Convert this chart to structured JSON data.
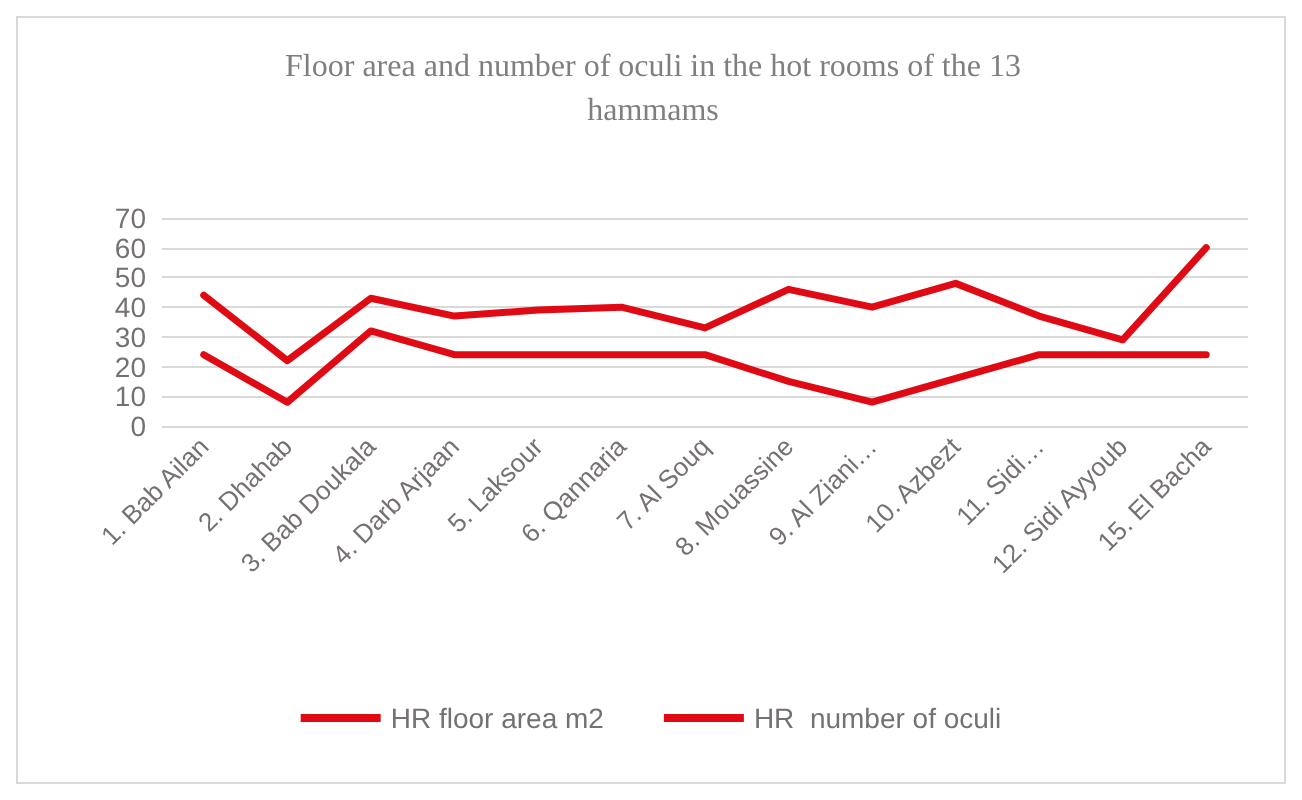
{
  "chart_data": {
    "type": "line",
    "title": "Floor area and number of oculi in the hot rooms of the 13 hammams",
    "categories": [
      "1. Bab Ailan",
      "2. Dhahab",
      "3. Bab Doukala",
      "4. Darb Arjaan",
      "5. Laksour",
      "6. Qannaria",
      "7. Al Souq",
      "8. Mouassine",
      "9. Al Ziani…",
      "10. Azbezt",
      "11. Sidi…",
      "12. Sidi Ayyoub",
      "15. El Bacha"
    ],
    "series": [
      {
        "name": "HR floor area m2",
        "color": "#e00a14",
        "values": [
          44,
          22,
          43,
          37,
          39,
          40,
          33,
          46,
          40,
          48,
          37,
          29,
          60
        ]
      },
      {
        "name": "HR  number of oculi",
        "color": "#e00a14",
        "values": [
          24,
          8,
          32,
          24,
          24,
          24,
          24,
          15,
          8,
          16,
          24,
          24,
          24
        ]
      }
    ],
    "ylim": [
      0,
      70
    ],
    "yticks": [
      0,
      10,
      20,
      30,
      40,
      50,
      60,
      70
    ],
    "grid": "y",
    "legend": "bottom",
    "marker": "none",
    "line_style": "solid"
  }
}
